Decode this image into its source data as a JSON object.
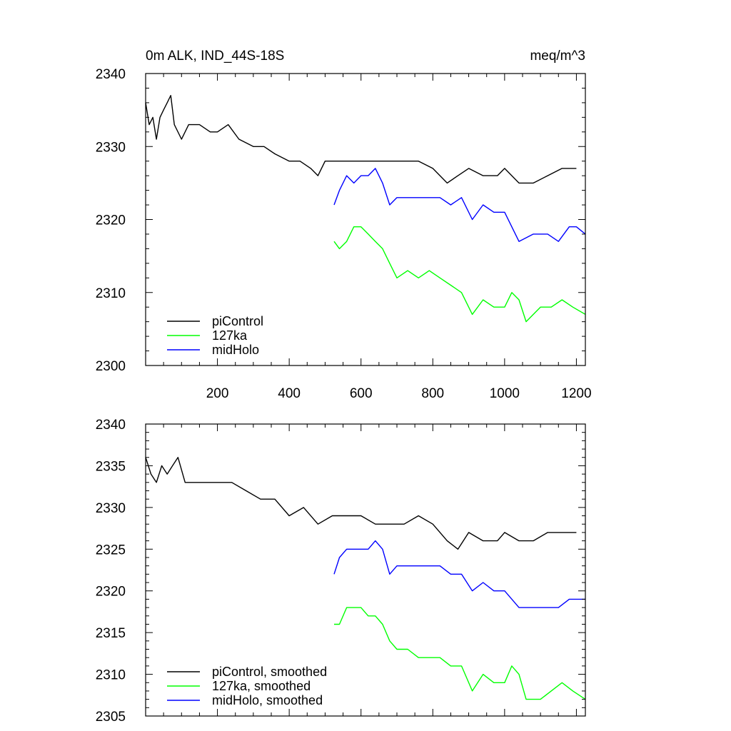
{
  "chart_data": [
    {
      "type": "line",
      "title": "0m ALK, IND_44S-18S",
      "units": "meq/m^3",
      "xlim": [
        0,
        1225
      ],
      "ylim": [
        2300,
        2340
      ],
      "x_ticks": [
        200,
        400,
        600,
        800,
        1000,
        1200
      ],
      "x_tick_labels": [
        "200",
        "400",
        "600",
        "800",
        "1000",
        "1200"
      ],
      "y_ticks": [
        2300,
        2310,
        2320,
        2330,
        2340
      ],
      "y_tick_labels": [
        "2300",
        "2310",
        "2320",
        "2330",
        "2340"
      ],
      "series": [
        {
          "name": "piControl",
          "color": "#000000",
          "x": [
            0,
            10,
            20,
            30,
            40,
            50,
            60,
            70,
            80,
            100,
            120,
            150,
            180,
            200,
            230,
            260,
            300,
            330,
            360,
            400,
            430,
            460,
            480,
            500,
            530,
            560,
            600,
            640,
            680,
            720,
            760,
            800,
            840,
            870,
            900,
            940,
            980,
            1000,
            1040,
            1080,
            1120,
            1160,
            1200
          ],
          "y": [
            2336,
            2333,
            2334,
            2331,
            2334,
            2335,
            2336,
            2337,
            2333,
            2331,
            2333,
            2333,
            2332,
            2332,
            2333,
            2331,
            2330,
            2330,
            2329,
            2328,
            2328,
            2327,
            2326,
            2328,
            2328,
            2328,
            2328,
            2328,
            2328,
            2328,
            2328,
            2327,
            2325,
            2326,
            2327,
            2326,
            2326,
            2327,
            2325,
            2325,
            2326,
            2327,
            2327
          ]
        },
        {
          "name": "127ka",
          "color": "#00ff00",
          "x": [
            525,
            540,
            560,
            580,
            600,
            620,
            640,
            660,
            680,
            700,
            730,
            760,
            790,
            820,
            850,
            880,
            910,
            940,
            970,
            1000,
            1020,
            1040,
            1060,
            1080,
            1100,
            1130,
            1160,
            1190,
            1225
          ],
          "y": [
            2317,
            2316,
            2317,
            2319,
            2319,
            2318,
            2317,
            2316,
            2314,
            2312,
            2313,
            2312,
            2313,
            2312,
            2311,
            2310,
            2307,
            2309,
            2308,
            2308,
            2310,
            2309,
            2306,
            2307,
            2308,
            2308,
            2309,
            2308,
            2307
          ]
        },
        {
          "name": "midHolo",
          "color": "#0000ff",
          "x": [
            525,
            540,
            560,
            580,
            600,
            620,
            640,
            660,
            680,
            700,
            730,
            760,
            790,
            820,
            850,
            880,
            910,
            940,
            970,
            1000,
            1040,
            1080,
            1120,
            1150,
            1180,
            1200,
            1225
          ],
          "y": [
            2322,
            2324,
            2326,
            2325,
            2326,
            2326,
            2327,
            2325,
            2322,
            2323,
            2323,
            2323,
            2323,
            2323,
            2322,
            2323,
            2320,
            2322,
            2321,
            2321,
            2317,
            2318,
            2318,
            2317,
            2319,
            2319,
            2318
          ]
        }
      ],
      "legend": {
        "placement": "bottom-left",
        "entries": [
          "piControl",
          "127ka",
          "midHolo"
        ]
      }
    },
    {
      "type": "line",
      "xlim": [
        0,
        1225
      ],
      "ylim": [
        2305,
        2340
      ],
      "x_ticks": [
        200,
        400,
        600,
        800,
        1000,
        1200
      ],
      "y_ticks": [
        2305,
        2310,
        2315,
        2320,
        2325,
        2330,
        2335,
        2340
      ],
      "y_tick_labels": [
        "2305",
        "2310",
        "2315",
        "2320",
        "2325",
        "2330",
        "2335",
        "2340"
      ],
      "series": [
        {
          "name": "piControl, smoothed",
          "color": "#000000",
          "x": [
            0,
            15,
            30,
            45,
            60,
            75,
            90,
            110,
            130,
            160,
            200,
            240,
            280,
            320,
            360,
            400,
            440,
            480,
            520,
            560,
            600,
            640,
            680,
            720,
            760,
            800,
            840,
            870,
            900,
            940,
            980,
            1000,
            1040,
            1080,
            1120,
            1160,
            1200
          ],
          "y": [
            2336,
            2334,
            2333,
            2335,
            2334,
            2335,
            2336,
            2333,
            2333,
            2333,
            2333,
            2333,
            2332,
            2331,
            2331,
            2329,
            2330,
            2328,
            2329,
            2329,
            2329,
            2328,
            2328,
            2328,
            2329,
            2328,
            2326,
            2325,
            2327,
            2326,
            2326,
            2327,
            2326,
            2326,
            2327,
            2327,
            2327
          ]
        },
        {
          "name": "127ka, smoothed",
          "color": "#00ff00",
          "x": [
            525,
            540,
            560,
            580,
            600,
            620,
            640,
            660,
            680,
            700,
            730,
            760,
            790,
            820,
            850,
            880,
            910,
            940,
            970,
            1000,
            1020,
            1040,
            1060,
            1080,
            1100,
            1130,
            1160,
            1190,
            1225
          ],
          "y": [
            2316,
            2316,
            2318,
            2318,
            2318,
            2317,
            2317,
            2316,
            2314,
            2313,
            2313,
            2312,
            2312,
            2312,
            2311,
            2311,
            2308,
            2310,
            2309,
            2309,
            2311,
            2310,
            2307,
            2307,
            2307,
            2308,
            2309,
            2308,
            2307
          ]
        },
        {
          "name": "midHolo, smoothed",
          "color": "#0000ff",
          "x": [
            525,
            540,
            560,
            580,
            600,
            620,
            640,
            660,
            680,
            700,
            730,
            760,
            790,
            820,
            850,
            880,
            910,
            940,
            970,
            1000,
            1040,
            1080,
            1120,
            1150,
            1180,
            1200,
            1225
          ],
          "y": [
            2322,
            2324,
            2325,
            2325,
            2325,
            2325,
            2326,
            2325,
            2322,
            2323,
            2323,
            2323,
            2323,
            2323,
            2322,
            2322,
            2320,
            2321,
            2320,
            2320,
            2318,
            2318,
            2318,
            2318,
            2319,
            2319,
            2319
          ]
        }
      ],
      "legend": {
        "placement": "bottom-left",
        "entries": [
          "piControl, smoothed",
          "127ka, smoothed",
          "midHolo, smoothed"
        ]
      }
    }
  ]
}
